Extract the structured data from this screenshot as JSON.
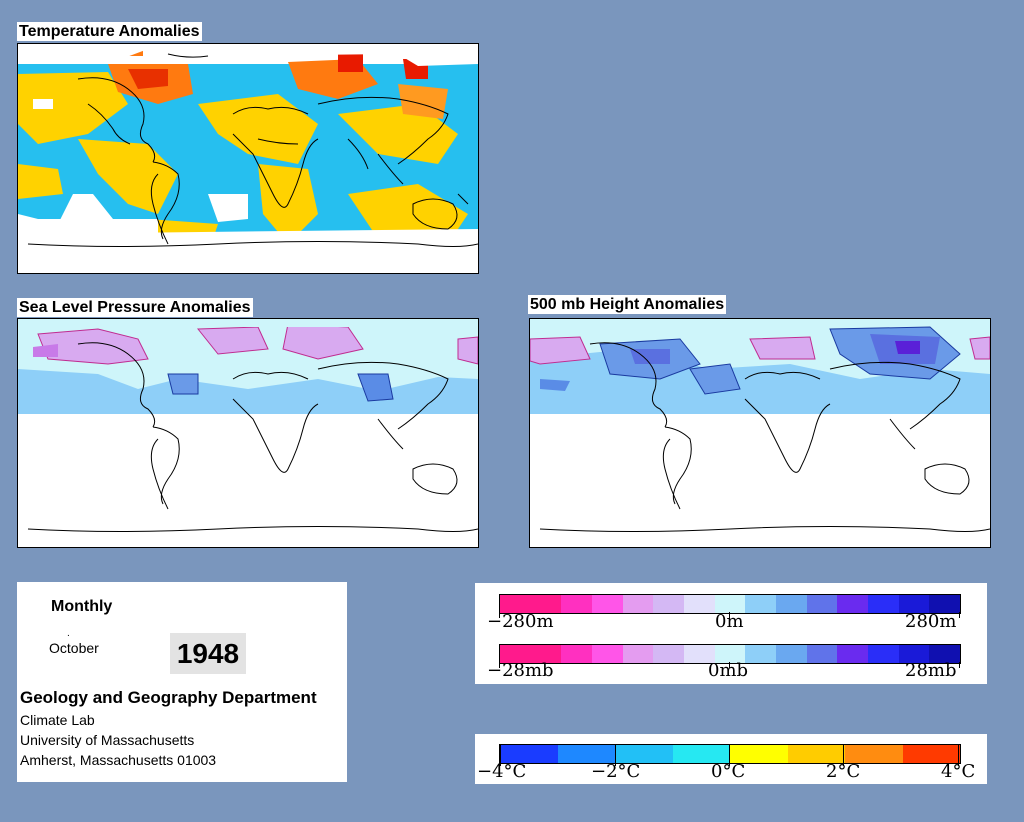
{
  "panels": {
    "temperature": {
      "title": "Temperature Anomalies"
    },
    "slp": {
      "title": "Sea Level Pressure Anomalies"
    },
    "height500": {
      "title": "500 mb Height Anomalies"
    }
  },
  "info": {
    "period": "Monthly",
    "month": "October",
    "year": "1948",
    "department": "Geology and Geography Department",
    "lines": [
      "Climate Lab",
      "University of Massachusetts",
      "Amherst, Massachusetts 01003"
    ]
  },
  "legend_height_pressure": {
    "height_labels": [
      "−280m",
      "0m",
      "280m"
    ],
    "pressure_labels": [
      "−28mb",
      "0mb",
      "28mb"
    ],
    "colors": [
      "#ff1a8c",
      "#ff1a8c",
      "#ff30c0",
      "#ff55e8",
      "#e49cf0",
      "#d4b8f4",
      "#e2e0fb",
      "#cef5fa",
      "#8ecff8",
      "#6aa8f0",
      "#6073ea",
      "#6a2bef",
      "#2a2ef8",
      "#1a1ad8",
      "#1010b0"
    ]
  },
  "legend_temperature": {
    "labels": [
      "−4°C",
      "−2°C",
      "0°C",
      "2°C",
      "4°C"
    ],
    "colors": [
      "#1a3cff",
      "#1e88ff",
      "#22c0f6",
      "#26e8f2",
      "#ffff00",
      "#ffcc00",
      "#ff8c10",
      "#ff3a00"
    ]
  },
  "colors": {
    "background": "#7a96bd",
    "warm": "#ffd200",
    "cool": "#26bfef",
    "hot": "#ff7a10",
    "low_pressure": "#5a8ce6",
    "high_pressure": "#d8aaf0"
  }
}
